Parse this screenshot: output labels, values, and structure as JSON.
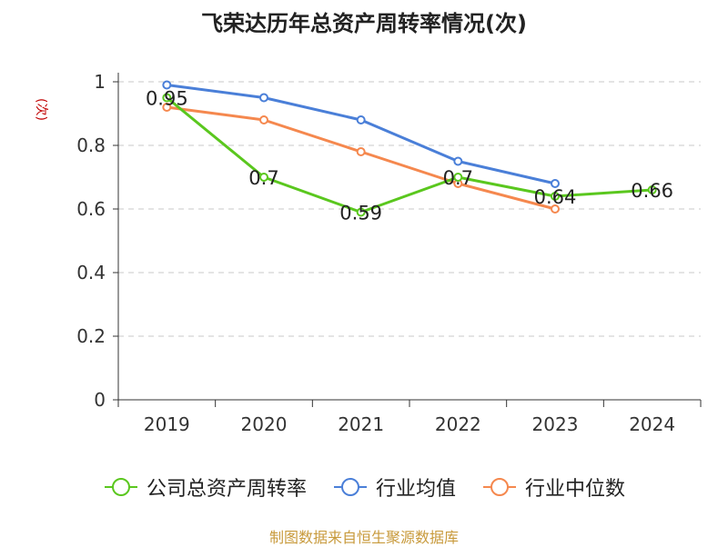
{
  "chart_data": {
    "type": "line",
    "title": "飞荣达历年总资产周转率情况(次)",
    "ylabel": "(次)",
    "xlabel": "",
    "categories": [
      "2019",
      "2020",
      "2021",
      "2022",
      "2023",
      "2024"
    ],
    "ylim": [
      0,
      1
    ],
    "yticks": [
      "0",
      "0.2",
      "0.4",
      "0.6",
      "0.8",
      "1"
    ],
    "grid": true,
    "legend_position": "bottom",
    "series": [
      {
        "name": "公司总资产周转率",
        "color": "#5ac71e",
        "values": [
          0.95,
          0.7,
          0.59,
          0.7,
          0.64,
          0.66
        ],
        "labels": [
          "0.95",
          "0.7",
          "0.59",
          "0.7",
          "0.64",
          "0.66"
        ]
      },
      {
        "name": "行业均值",
        "color": "#4a7fd8",
        "values": [
          0.99,
          0.95,
          0.88,
          0.75,
          0.68,
          null
        ]
      },
      {
        "name": "行业中位数",
        "color": "#f5884e",
        "values": [
          0.92,
          0.88,
          0.78,
          0.68,
          0.6,
          null
        ]
      }
    ]
  },
  "footer": {
    "source": "制图数据来自恒生聚源数据库"
  }
}
